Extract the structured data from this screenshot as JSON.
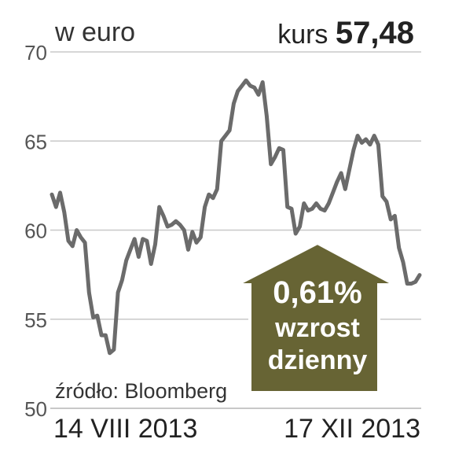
{
  "header": {
    "unit_label": "w euro",
    "price_label": "kurs",
    "price_value": "57,48"
  },
  "source": "źródło: Bloomberg",
  "badge": {
    "percent": "0,61%",
    "line1": "wzrost",
    "line2": "dzienny"
  },
  "colors": {
    "line": "#6b6b6b",
    "grid": "#c8c8c8",
    "badge_fill": "#676434",
    "badge_border": "#ffffff"
  },
  "chart_data": {
    "type": "line",
    "x_start_label": "14 VIII 2013",
    "x_end_label": "17 XII 2013",
    "ylim": [
      50,
      70
    ],
    "yticks": [
      50,
      55,
      60,
      65,
      70
    ],
    "grid": true,
    "series": [
      {
        "values": [
          62.0,
          61.3,
          62.1,
          61.0,
          59.4,
          59.1,
          60.0,
          59.6,
          59.3,
          56.5,
          55.1,
          55.2,
          54.1,
          54.1,
          53.1,
          53.3,
          56.5,
          57.2,
          58.3,
          58.9,
          59.5,
          58.5,
          59.5,
          59.4,
          58.1,
          59.2,
          61.3,
          60.8,
          60.2,
          60.3,
          60.5,
          60.3,
          60.0,
          58.9,
          59.9,
          59.3,
          59.6,
          61.3,
          62.0,
          61.8,
          62.3,
          65.0,
          65.3,
          65.6,
          67.1,
          67.8,
          68.1,
          68.4,
          68.1,
          68.0,
          67.6,
          68.3,
          66.4,
          63.7,
          64.1,
          64.6,
          64.5,
          61.3,
          61.2,
          59.8,
          60.2,
          61.5,
          61.1,
          61.2,
          61.5,
          61.2,
          61.1,
          61.5,
          62.1,
          62.7,
          63.2,
          62.3,
          63.4,
          64.5,
          65.3,
          64.9,
          65.1,
          64.8,
          65.3,
          64.8,
          61.9,
          61.6,
          60.6,
          60.8,
          59.0,
          58.2,
          57.0,
          57.0,
          57.1,
          57.48
        ]
      }
    ]
  }
}
